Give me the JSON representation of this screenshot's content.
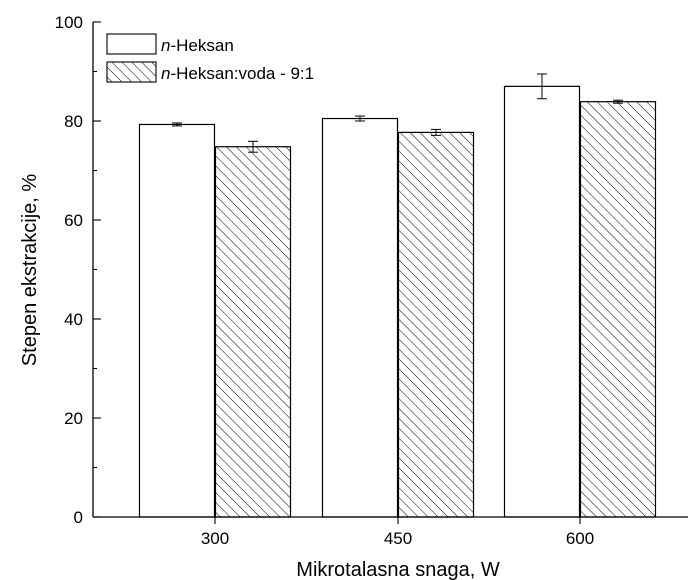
{
  "chart_data": {
    "type": "bar",
    "xlabel": "Mikrotalasna snaga, W",
    "ylabel": "Stepen ekstrakcije, %",
    "ylim": [
      0,
      100
    ],
    "yticks": [
      "0",
      "20",
      "40",
      "60",
      "80",
      "100"
    ],
    "categories": [
      "300",
      "450",
      "600"
    ],
    "series": [
      {
        "name_italic": "n",
        "name_rest": "-Heksan",
        "fill": "none",
        "values": [
          79.3,
          80.5,
          87.0
        ],
        "errors": [
          0.3,
          0.5,
          2.5
        ]
      },
      {
        "name_italic": "n",
        "name_rest": "-Heksan:voda - 9:1",
        "fill": "hatched",
        "values": [
          74.8,
          77.7,
          83.9
        ],
        "errors": [
          1.1,
          0.6,
          0.3
        ]
      }
    ],
    "legend_position": "top-left",
    "grid": false
  }
}
